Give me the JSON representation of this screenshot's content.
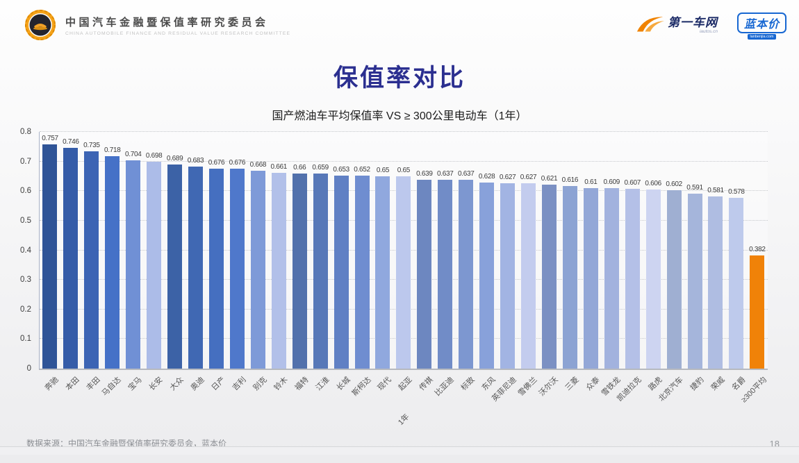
{
  "header": {
    "committee_cn": "中国汽车金融暨保值率研究委员会",
    "committee_en": "CHINA AUTOMOBILE FINANCE AND RESIDUAL VALUE RESEARCH COMMITTEE",
    "iautos_name": "第一车网",
    "iautos_domain": "iautos.cn",
    "lanbenjia_name": "蓝本价",
    "lanbenjia_domain": "lanbenjia.com"
  },
  "title": "保值率对比",
  "subtitle": "国产燃油车平均保值率 VS ≥ 300公里电动车（1年）",
  "footer": {
    "source": "数据来源：中国汽车金融暨保值率研究委员会，蓝本价",
    "page": "18"
  },
  "colors": {
    "title": "#2b2f90",
    "highlight_orange": "#F08208"
  },
  "chart_data": {
    "type": "bar",
    "title": "国产燃油车平均保值率 VS ≥ 300公里电动车（1年）",
    "xlabel": "1年",
    "ylabel": "",
    "ylim": [
      0,
      0.8
    ],
    "yticks": [
      0,
      0.1,
      0.2,
      0.3,
      0.4,
      0.5,
      0.6,
      0.7,
      0.8
    ],
    "ytick_labels": [
      "0",
      "0.1",
      "0.2",
      "0.3",
      "0.4",
      "0.5",
      "0.6",
      "0.7",
      "0.8"
    ],
    "grid": "horizontal-dotted",
    "legend": "none",
    "categories": [
      "奔驰",
      "本田",
      "丰田",
      "马自达",
      "宝马",
      "长安",
      "大众",
      "奥迪",
      "日产",
      "吉利",
      "别克",
      "铃木",
      "福特",
      "江淮",
      "长城",
      "斯柯达",
      "现代",
      "起亚",
      "传祺",
      "比亚迪",
      "标致",
      "东风",
      "英菲尼迪",
      "雪佛兰",
      "沃尔沃",
      "三菱",
      "众泰",
      "雪铁龙",
      "凯迪拉克",
      "路虎",
      "北京汽车",
      "捷豹",
      "荣威",
      "名爵",
      "≥300平均"
    ],
    "values": [
      0.757,
      0.746,
      0.735,
      0.718,
      0.704,
      0.698,
      0.689,
      0.683,
      0.676,
      0.676,
      0.668,
      0.661,
      0.66,
      0.659,
      0.653,
      0.652,
      0.65,
      0.65,
      0.639,
      0.637,
      0.637,
      0.628,
      0.627,
      0.627,
      0.621,
      0.616,
      0.61,
      0.609,
      0.607,
      0.606,
      0.602,
      0.591,
      0.581,
      0.578,
      0.382
    ],
    "value_labels": [
      "0.757",
      "0.746",
      "0.735",
      "0.718",
      "0.704",
      "0.698",
      "0.689",
      "0.683",
      "0.676",
      "0.676",
      "0.668",
      "0.661",
      "0.66",
      "0.659",
      "0.653",
      "0.652",
      "0.65",
      "0.65",
      "0.639",
      "0.637",
      "0.637",
      "0.628",
      "0.627",
      "0.627",
      "0.621",
      "0.616",
      "0.61",
      "0.609",
      "0.607",
      "0.606",
      "0.602",
      "0.591",
      "0.581",
      "0.578",
      "0.382"
    ],
    "bar_colors": [
      "#2F5497",
      "#355CA8",
      "#3C64B4",
      "#4571C7",
      "#7090D5",
      "#ACBCE8",
      "#3C62A6",
      "#4068B3",
      "#456FC0",
      "#4F78CB",
      "#7E9AD8",
      "#B2C0E9",
      "#5271AC",
      "#5778B8",
      "#6080C4",
      "#6F8DD0",
      "#90A8DE",
      "#BCC8ED",
      "#6D87C0",
      "#718CC7",
      "#7D97D0",
      "#88A1DA",
      "#A2B4E3",
      "#C3CCEE",
      "#7B90C3",
      "#8CA3D3",
      "#93A7D7",
      "#A2B2DE",
      "#B4C0E7",
      "#CDD4F1",
      "#9FAFD2",
      "#A5B5DB",
      "#AFBDE2",
      "#BECAEC",
      "#F08208"
    ]
  }
}
